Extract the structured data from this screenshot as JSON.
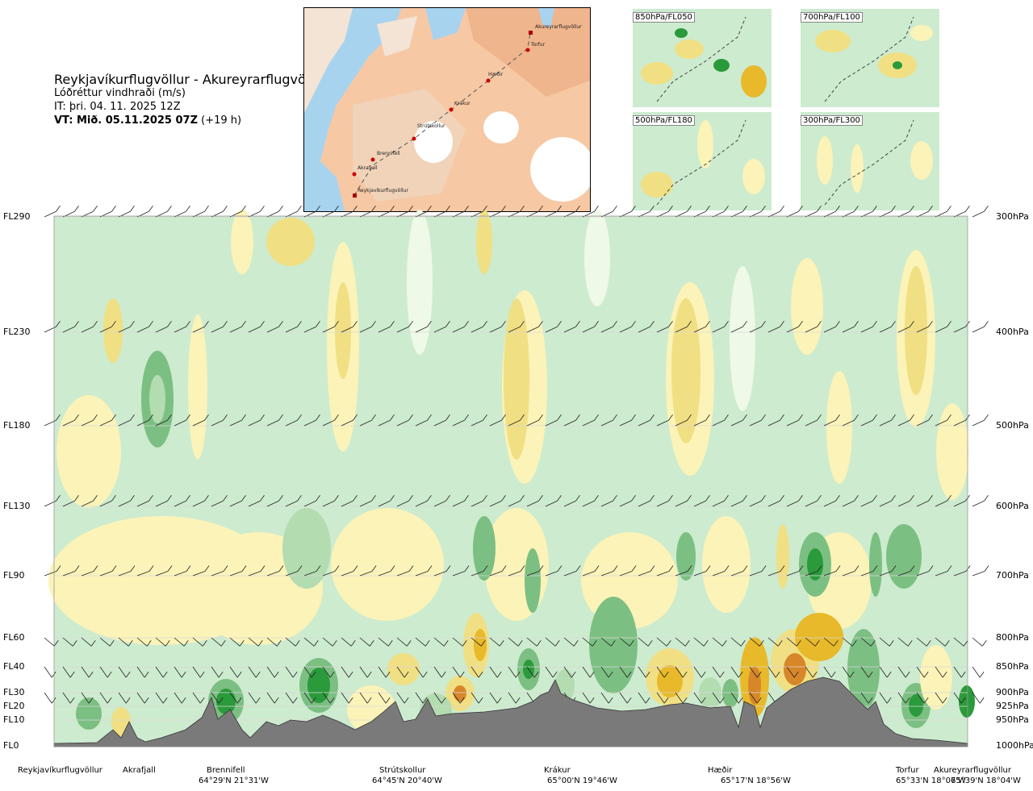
{
  "header": {
    "route": "Reykjavíkurflugvöllur - Akureyrarflugvöllur",
    "variable": "Lóðréttur vindhraði (m/s)",
    "issue_time": "IT: þri. 04. 11. 2025 12Z",
    "valid_time_bold": "VT: Mið. 05.11.2025 07Z",
    "valid_time_offset": "(+19 h)"
  },
  "map": {
    "waypoints": [
      "Akureyrarflugvöllur",
      "Torfur",
      "Hæðir",
      "Krákur",
      "Strútskollur",
      "Brennifell",
      "Akrafjall",
      "Reykjavíkurflugvöllur"
    ]
  },
  "mini_maps": [
    "850hPa/FL050",
    "700hPa/FL100",
    "500hPa/FL180",
    "300hPa/FL300"
  ],
  "colors": {
    "strong_up": "#2a9a3a",
    "mid_up": "#7cbf82",
    "weak_up": "#b3dcb0",
    "background": "#cdebcf",
    "neutral": "#eef9e8",
    "weak_down": "#fbf3b8",
    "mid_down": "#f1df83",
    "strong_down": "#e8b92a",
    "very_strong_down": "#d8862a",
    "terrain": "#7a7a7a"
  },
  "chart_data": {
    "type": "heatmap",
    "title": "Reykjavíkurflugvöllur - Akureyrarflugvöllur",
    "variable": "Lóðréttur vindhraði (m/s)",
    "levels_left": [
      "FL290",
      "FL230",
      "FL180",
      "FL130",
      "FL90",
      "FL60",
      "FL40",
      "FL30",
      "FL20",
      "FL10",
      "FL0"
    ],
    "levels_right": [
      "300hPa",
      "400hPa",
      "500hPa",
      "600hPa",
      "700hPa",
      "800hPa",
      "850hPa",
      "900hPa",
      "925hPa",
      "950hPa",
      "1000hPa"
    ],
    "flight_levels": [
      290,
      230,
      180,
      130,
      90,
      60,
      40,
      30,
      20,
      10,
      0
    ],
    "waypoints": [
      {
        "name": "Reykjavíkurflugvöllur",
        "coord": ""
      },
      {
        "name": "Akrafjall",
        "coord": ""
      },
      {
        "name": "Brennifell",
        "coord": "64°29'N 21°31'W"
      },
      {
        "name": "Strútskollur",
        "coord": "64°45'N 20°40'W"
      },
      {
        "name": "Krákur",
        "coord": "65°00'N 19°46'W"
      },
      {
        "name": "Hæðir",
        "coord": "65°17'N 18°56'W"
      },
      {
        "name": "Torfur",
        "coord": "65°33'N 18°07'W"
      },
      {
        "name": "Akureyrarflugvöllur",
        "coord": "65°39'N 18°04'W"
      }
    ]
  }
}
